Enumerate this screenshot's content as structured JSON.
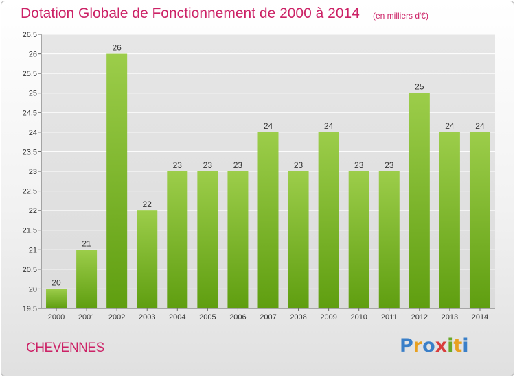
{
  "title": "Dotation Globale de Fonctionnement de 2000 à 2014",
  "subtitle": "(en milliers d'€)",
  "commune": "CHEVENNES",
  "logo": {
    "letters": [
      "P",
      "r",
      "o",
      "x",
      "i",
      "t",
      "i"
    ]
  },
  "colors": {
    "accent": "#cc2266",
    "bar_top": "#9ccd4a",
    "bar_bottom": "#5f9e10",
    "grid": "#ffffff"
  },
  "chart_data": {
    "type": "bar",
    "categories": [
      "2000",
      "2001",
      "2002",
      "2003",
      "2004",
      "2005",
      "2006",
      "2007",
      "2008",
      "2009",
      "2010",
      "2011",
      "2012",
      "2013",
      "2014"
    ],
    "values": [
      20,
      21,
      26,
      22,
      23,
      23,
      23,
      24,
      23,
      24,
      23,
      23,
      25,
      24,
      24
    ],
    "data_labels": [
      "20",
      "21",
      "26",
      "22",
      "23",
      "23",
      "23",
      "24",
      "23",
      "24",
      "23",
      "23",
      "25",
      "24",
      "24"
    ],
    "yticks": [
      "19.5",
      "20",
      "20.5",
      "21",
      "21.5",
      "22",
      "22.5",
      "23",
      "23.5",
      "24",
      "24.5",
      "25",
      "25.5",
      "26",
      "26.5"
    ],
    "ylim": [
      19.5,
      26.5
    ],
    "grid": true
  }
}
